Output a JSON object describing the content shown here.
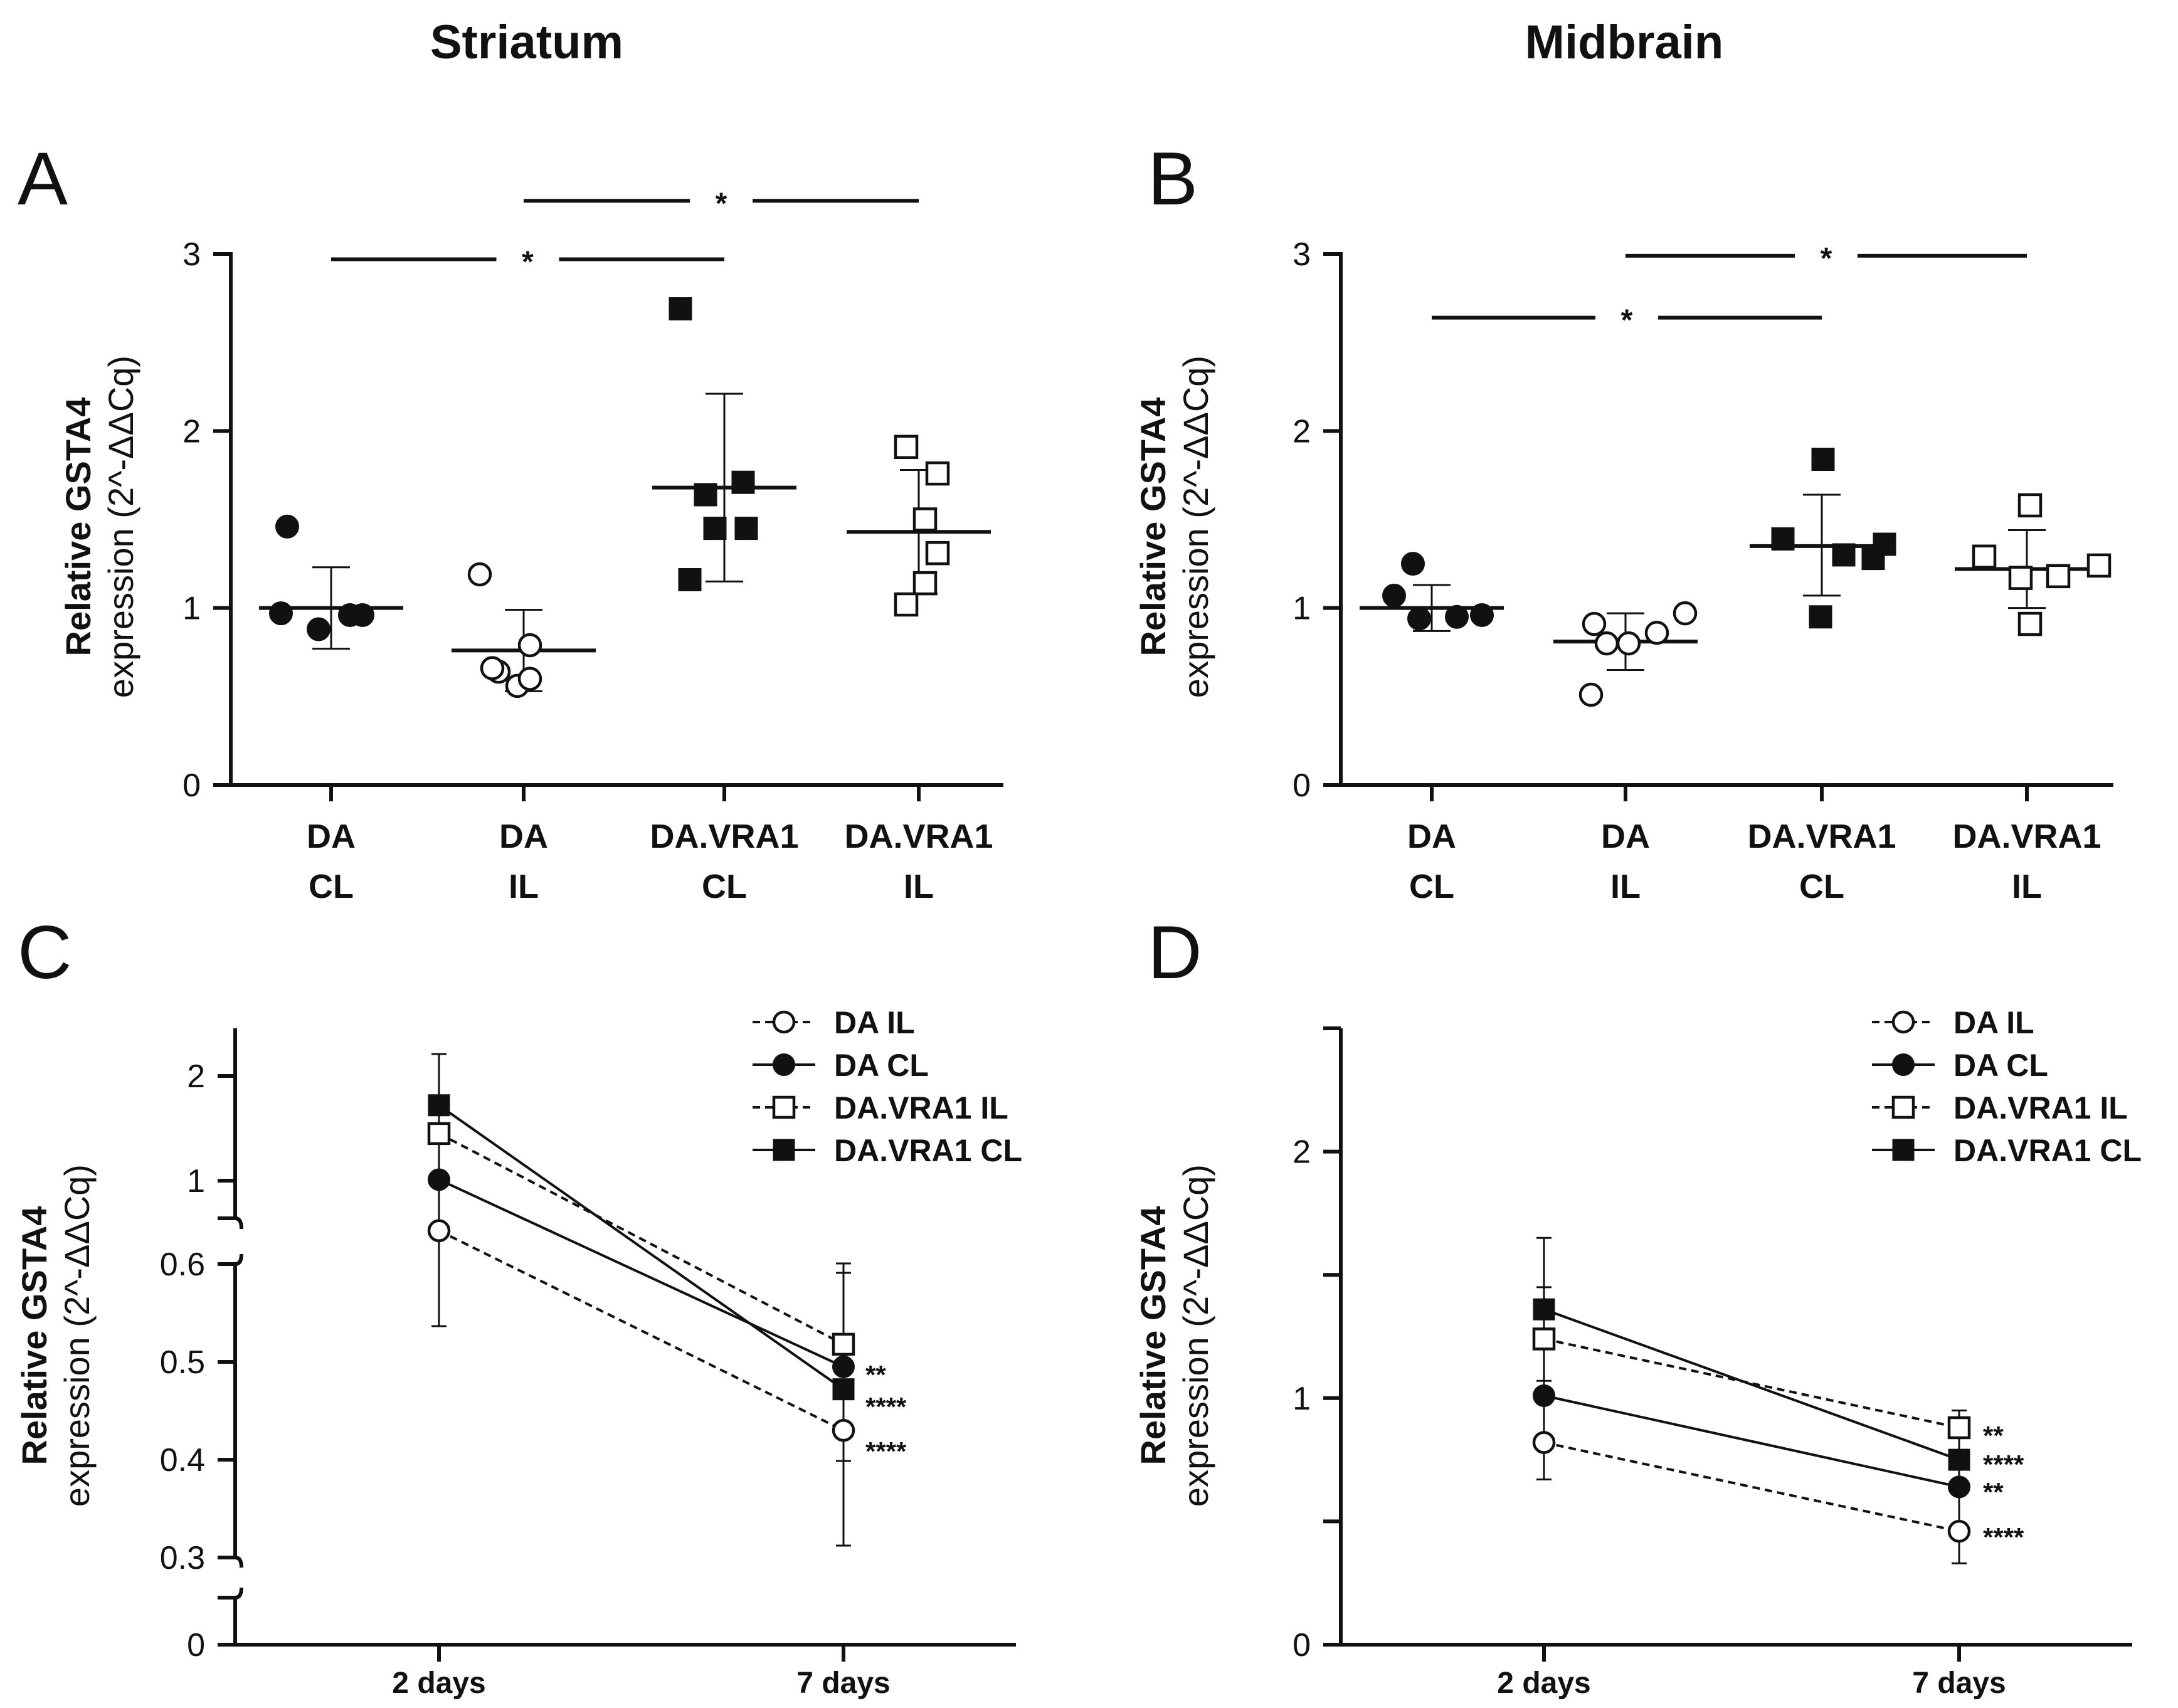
{
  "column_titles": {
    "left": "Striatum",
    "right": "Midbrain"
  },
  "panel_letters": [
    "A",
    "B",
    "C",
    "D"
  ],
  "ylabel_lines": [
    "Relative GSTA4",
    "expression (2^-ΔΔCq)"
  ],
  "chart_data": [
    {
      "panel": "A",
      "type": "scatter",
      "title": "Striatum",
      "categories": [
        [
          "DA",
          "CL"
        ],
        [
          "DA",
          "IL"
        ],
        [
          "DA.VRA1",
          "CL"
        ],
        [
          "DA.VRA1",
          "IL"
        ]
      ],
      "ylim": [
        0,
        3
      ],
      "yticks": [
        "0",
        "1",
        "2",
        "3"
      ],
      "groups": [
        {
          "name": "DA CL",
          "marker": "filled-circle",
          "points": [
            1.46,
            0.97,
            0.96,
            0.88,
            0.96
          ],
          "mean": 1.0,
          "sd_low": 0.77,
          "sd_high": 1.23
        },
        {
          "name": "DA IL",
          "marker": "open-circle",
          "points": [
            1.19,
            0.64,
            0.79,
            0.66,
            0.56,
            0.6
          ],
          "mean": 0.76,
          "sd_low": 0.53,
          "sd_high": 0.99
        },
        {
          "name": "DA.VRA1 CL",
          "marker": "filled-square",
          "points": [
            2.69,
            1.64,
            1.71,
            1.45,
            1.45,
            1.16
          ],
          "mean": 1.68,
          "sd_low": 1.15,
          "sd_high": 2.21
        },
        {
          "name": "DA.VRA1 IL",
          "marker": "open-square",
          "points": [
            1.91,
            1.76,
            1.5,
            1.31,
            1.14,
            1.02
          ],
          "mean": 1.43,
          "sd_low": 1.08,
          "sd_high": 1.78
        }
      ],
      "significance": [
        {
          "from": 0,
          "to": 2,
          "label": "*",
          "y": 2.97
        },
        {
          "from": 1,
          "to": 3,
          "label": "*",
          "y": 3.3
        }
      ]
    },
    {
      "panel": "B",
      "type": "scatter",
      "title": "Midbrain",
      "categories": [
        [
          "DA",
          "CL"
        ],
        [
          "DA",
          "IL"
        ],
        [
          "DA.VRA1",
          "CL"
        ],
        [
          "DA.VRA1",
          "IL"
        ]
      ],
      "ylim": [
        0,
        3
      ],
      "yticks": [
        "0",
        "1",
        "2",
        "3"
      ],
      "groups": [
        {
          "name": "DA CL",
          "marker": "filled-circle",
          "points": [
            1.07,
            1.25,
            0.94,
            0.95,
            0.96
          ],
          "mean": 1.0,
          "sd_low": 0.87,
          "sd_high": 1.13
        },
        {
          "name": "DA IL",
          "marker": "open-circle",
          "points": [
            0.91,
            0.8,
            0.8,
            0.86,
            0.97,
            0.51
          ],
          "mean": 0.81,
          "sd_low": 0.65,
          "sd_high": 0.97
        },
        {
          "name": "DA.VRA1 CL",
          "marker": "filled-square",
          "points": [
            1.39,
            1.84,
            1.3,
            1.28,
            1.36,
            0.95
          ],
          "mean": 1.35,
          "sd_low": 1.07,
          "sd_high": 1.64
        },
        {
          "name": "DA.VRA1 IL",
          "marker": "open-square",
          "points": [
            1.29,
            1.58,
            1.17,
            1.18,
            1.24,
            0.91
          ],
          "mean": 1.22,
          "sd_low": 1.0,
          "sd_high": 1.44
        }
      ],
      "significance": [
        {
          "from": 0,
          "to": 2,
          "label": "*",
          "y": 2.64
        },
        {
          "from": 1,
          "to": 3,
          "label": "*",
          "y": 2.99
        }
      ]
    },
    {
      "panel": "C",
      "type": "line",
      "x_categories": [
        "2 days",
        "7 days"
      ],
      "axis_break": true,
      "ylim_lower": [
        0,
        0.05
      ],
      "ylim_middle": [
        0.3,
        0.6
      ],
      "ylim_upper": [
        0.6,
        2.35
      ],
      "yticks": [
        "0",
        "0.3",
        "0.4",
        "0.5",
        "0.6",
        "1",
        "2"
      ],
      "series": [
        {
          "name": "DA IL",
          "marker": "open-circle",
          "dash": true,
          "values": [
            0.76,
            0.43
          ],
          "err": [
            0.54,
            0.31
          ],
          "err_up": [
            0.76,
            0.55
          ],
          "stars": "****"
        },
        {
          "name": "DA CL",
          "marker": "filled-circle",
          "dash": false,
          "values": [
            1.01,
            0.495
          ],
          "err": [
            1.01,
            0.39
          ],
          "err_up": [
            1.01,
            0.6
          ],
          "stars": "**"
        },
        {
          "name": "DA.VRA1 IL",
          "marker": "open-square",
          "dash": true,
          "values": [
            1.45,
            0.518
          ],
          "err": [
            1.2,
            0.4
          ],
          "err_up": [
            1.7,
            0.59
          ],
          "stars": ""
        },
        {
          "name": "DA.VRA1 CL",
          "marker": "filled-square",
          "dash": false,
          "values": [
            1.72,
            0.472
          ],
          "err": [
            1.2,
            0.43
          ],
          "err_up": [
            2.25,
            0.548
          ],
          "stars": "****"
        }
      ]
    },
    {
      "panel": "D",
      "type": "line",
      "x_categories": [
        "2 days",
        "7 days"
      ],
      "ylim": [
        0,
        2.5
      ],
      "yticks": [
        "0",
        "1",
        "2"
      ],
      "series": [
        {
          "name": "DA IL",
          "marker": "open-circle",
          "dash": true,
          "values": [
            0.82,
            0.46
          ],
          "err_low": [
            0.67,
            0.33
          ],
          "err_high": [
            0.82,
            0.46
          ],
          "stars": "****"
        },
        {
          "name": "DA CL",
          "marker": "filled-circle",
          "dash": false,
          "values": [
            1.01,
            0.64
          ],
          "err_low": [
            1.01,
            0.64
          ],
          "err_high": [
            1.01,
            0.64
          ],
          "stars": "**"
        },
        {
          "name": "DA.VRA1 IL",
          "marker": "open-square",
          "dash": true,
          "values": [
            1.24,
            0.88
          ],
          "err_low": [
            1.07,
            0.84
          ],
          "err_high": [
            1.65,
            0.95
          ],
          "stars": "**"
        },
        {
          "name": "DA.VRA1 CL",
          "marker": "filled-square",
          "dash": false,
          "values": [
            1.36,
            0.75
          ],
          "err_low": [
            1.36,
            0.75
          ],
          "err_high": [
            1.45,
            0.75
          ],
          "stars": "****"
        }
      ]
    }
  ]
}
